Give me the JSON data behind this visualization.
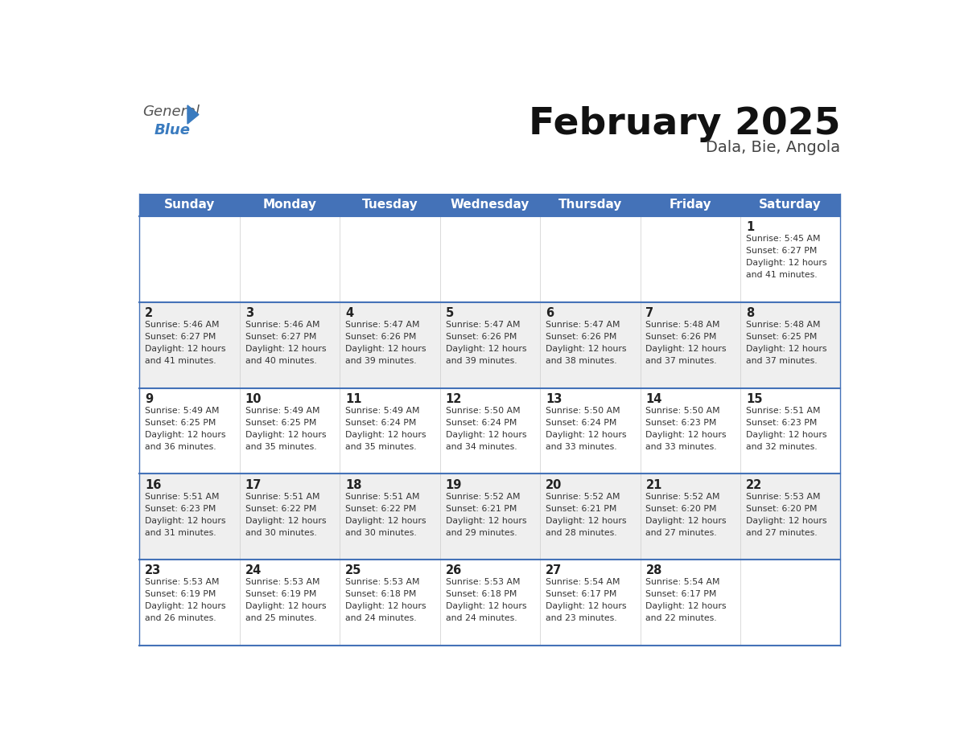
{
  "title": "February 2025",
  "subtitle": "Dala, Bie, Angola",
  "days_of_week": [
    "Sunday",
    "Monday",
    "Tuesday",
    "Wednesday",
    "Thursday",
    "Friday",
    "Saturday"
  ],
  "header_bg": "#4472b8",
  "header_text": "#ffffff",
  "row_bg_light": "#efefef",
  "row_bg_white": "#ffffff",
  "week_separator_color": "#4472b8",
  "day_number_color": "#222222",
  "info_text_color": "#333333",
  "title_color": "#111111",
  "subtitle_color": "#444444",
  "logo_general_color": "#555555",
  "logo_blue_color": "#3a7bbf",
  "calendar": [
    [
      {
        "day": null,
        "sunrise": null,
        "sunset": null,
        "daylight": null
      },
      {
        "day": null,
        "sunrise": null,
        "sunset": null,
        "daylight": null
      },
      {
        "day": null,
        "sunrise": null,
        "sunset": null,
        "daylight": null
      },
      {
        "day": null,
        "sunrise": null,
        "sunset": null,
        "daylight": null
      },
      {
        "day": null,
        "sunrise": null,
        "sunset": null,
        "daylight": null
      },
      {
        "day": null,
        "sunrise": null,
        "sunset": null,
        "daylight": null
      },
      {
        "day": 1,
        "sunrise": "5:45 AM",
        "sunset": "6:27 PM",
        "daylight": "12 hours and 41 minutes."
      }
    ],
    [
      {
        "day": 2,
        "sunrise": "5:46 AM",
        "sunset": "6:27 PM",
        "daylight": "12 hours and 41 minutes."
      },
      {
        "day": 3,
        "sunrise": "5:46 AM",
        "sunset": "6:27 PM",
        "daylight": "12 hours and 40 minutes."
      },
      {
        "day": 4,
        "sunrise": "5:47 AM",
        "sunset": "6:26 PM",
        "daylight": "12 hours and 39 minutes."
      },
      {
        "day": 5,
        "sunrise": "5:47 AM",
        "sunset": "6:26 PM",
        "daylight": "12 hours and 39 minutes."
      },
      {
        "day": 6,
        "sunrise": "5:47 AM",
        "sunset": "6:26 PM",
        "daylight": "12 hours and 38 minutes."
      },
      {
        "day": 7,
        "sunrise": "5:48 AM",
        "sunset": "6:26 PM",
        "daylight": "12 hours and 37 minutes."
      },
      {
        "day": 8,
        "sunrise": "5:48 AM",
        "sunset": "6:25 PM",
        "daylight": "12 hours and 37 minutes."
      }
    ],
    [
      {
        "day": 9,
        "sunrise": "5:49 AM",
        "sunset": "6:25 PM",
        "daylight": "12 hours and 36 minutes."
      },
      {
        "day": 10,
        "sunrise": "5:49 AM",
        "sunset": "6:25 PM",
        "daylight": "12 hours and 35 minutes."
      },
      {
        "day": 11,
        "sunrise": "5:49 AM",
        "sunset": "6:24 PM",
        "daylight": "12 hours and 35 minutes."
      },
      {
        "day": 12,
        "sunrise": "5:50 AM",
        "sunset": "6:24 PM",
        "daylight": "12 hours and 34 minutes."
      },
      {
        "day": 13,
        "sunrise": "5:50 AM",
        "sunset": "6:24 PM",
        "daylight": "12 hours and 33 minutes."
      },
      {
        "day": 14,
        "sunrise": "5:50 AM",
        "sunset": "6:23 PM",
        "daylight": "12 hours and 33 minutes."
      },
      {
        "day": 15,
        "sunrise": "5:51 AM",
        "sunset": "6:23 PM",
        "daylight": "12 hours and 32 minutes."
      }
    ],
    [
      {
        "day": 16,
        "sunrise": "5:51 AM",
        "sunset": "6:23 PM",
        "daylight": "12 hours and 31 minutes."
      },
      {
        "day": 17,
        "sunrise": "5:51 AM",
        "sunset": "6:22 PM",
        "daylight": "12 hours and 30 minutes."
      },
      {
        "day": 18,
        "sunrise": "5:51 AM",
        "sunset": "6:22 PM",
        "daylight": "12 hours and 30 minutes."
      },
      {
        "day": 19,
        "sunrise": "5:52 AM",
        "sunset": "6:21 PM",
        "daylight": "12 hours and 29 minutes."
      },
      {
        "day": 20,
        "sunrise": "5:52 AM",
        "sunset": "6:21 PM",
        "daylight": "12 hours and 28 minutes."
      },
      {
        "day": 21,
        "sunrise": "5:52 AM",
        "sunset": "6:20 PM",
        "daylight": "12 hours and 27 minutes."
      },
      {
        "day": 22,
        "sunrise": "5:53 AM",
        "sunset": "6:20 PM",
        "daylight": "12 hours and 27 minutes."
      }
    ],
    [
      {
        "day": 23,
        "sunrise": "5:53 AM",
        "sunset": "6:19 PM",
        "daylight": "12 hours and 26 minutes."
      },
      {
        "day": 24,
        "sunrise": "5:53 AM",
        "sunset": "6:19 PM",
        "daylight": "12 hours and 25 minutes."
      },
      {
        "day": 25,
        "sunrise": "5:53 AM",
        "sunset": "6:18 PM",
        "daylight": "12 hours and 24 minutes."
      },
      {
        "day": 26,
        "sunrise": "5:53 AM",
        "sunset": "6:18 PM",
        "daylight": "12 hours and 24 minutes."
      },
      {
        "day": 27,
        "sunrise": "5:54 AM",
        "sunset": "6:17 PM",
        "daylight": "12 hours and 23 minutes."
      },
      {
        "day": 28,
        "sunrise": "5:54 AM",
        "sunset": "6:17 PM",
        "daylight": "12 hours and 22 minutes."
      },
      {
        "day": null,
        "sunrise": null,
        "sunset": null,
        "daylight": null
      }
    ]
  ]
}
